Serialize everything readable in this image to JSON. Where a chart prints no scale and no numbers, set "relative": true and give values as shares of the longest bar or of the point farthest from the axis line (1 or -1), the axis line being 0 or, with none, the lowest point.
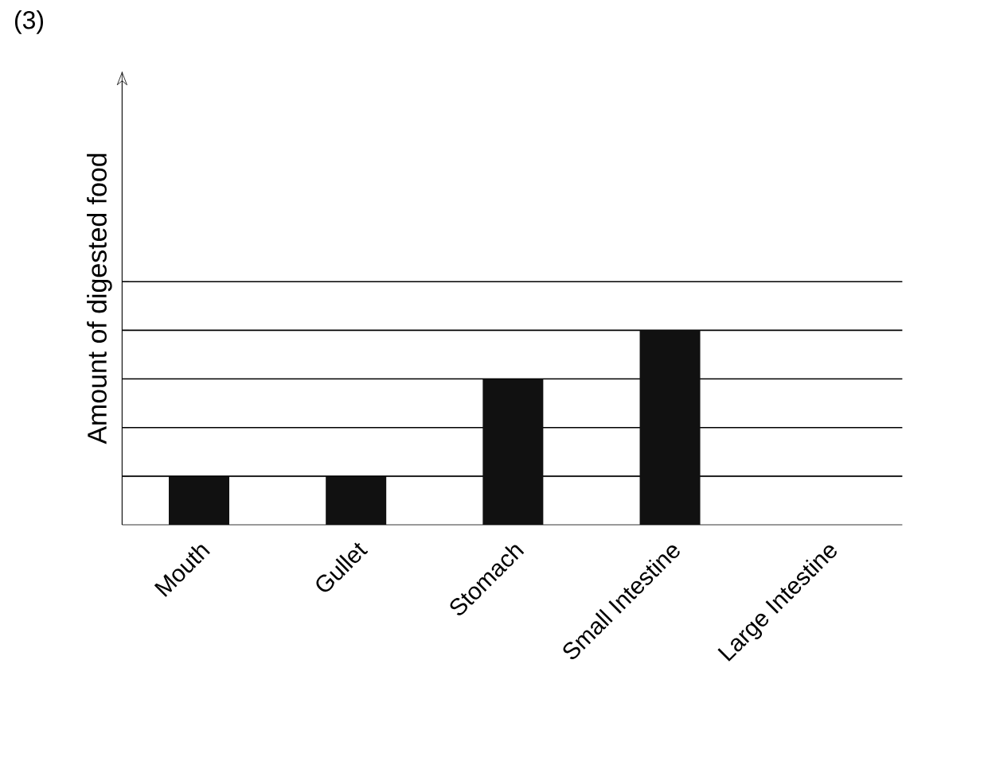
{
  "chart_data": {
    "type": "bar",
    "title": "(3)",
    "ylabel": "Amount of digested food",
    "categories": [
      "Mouth",
      "Gullet",
      "Stomach",
      "Small Intestine",
      "Large Intestine"
    ],
    "values": [
      0.25,
      0.25,
      0.75,
      1,
      0
    ],
    "color": "#111111",
    "relative": true,
    "grid": "y"
  }
}
